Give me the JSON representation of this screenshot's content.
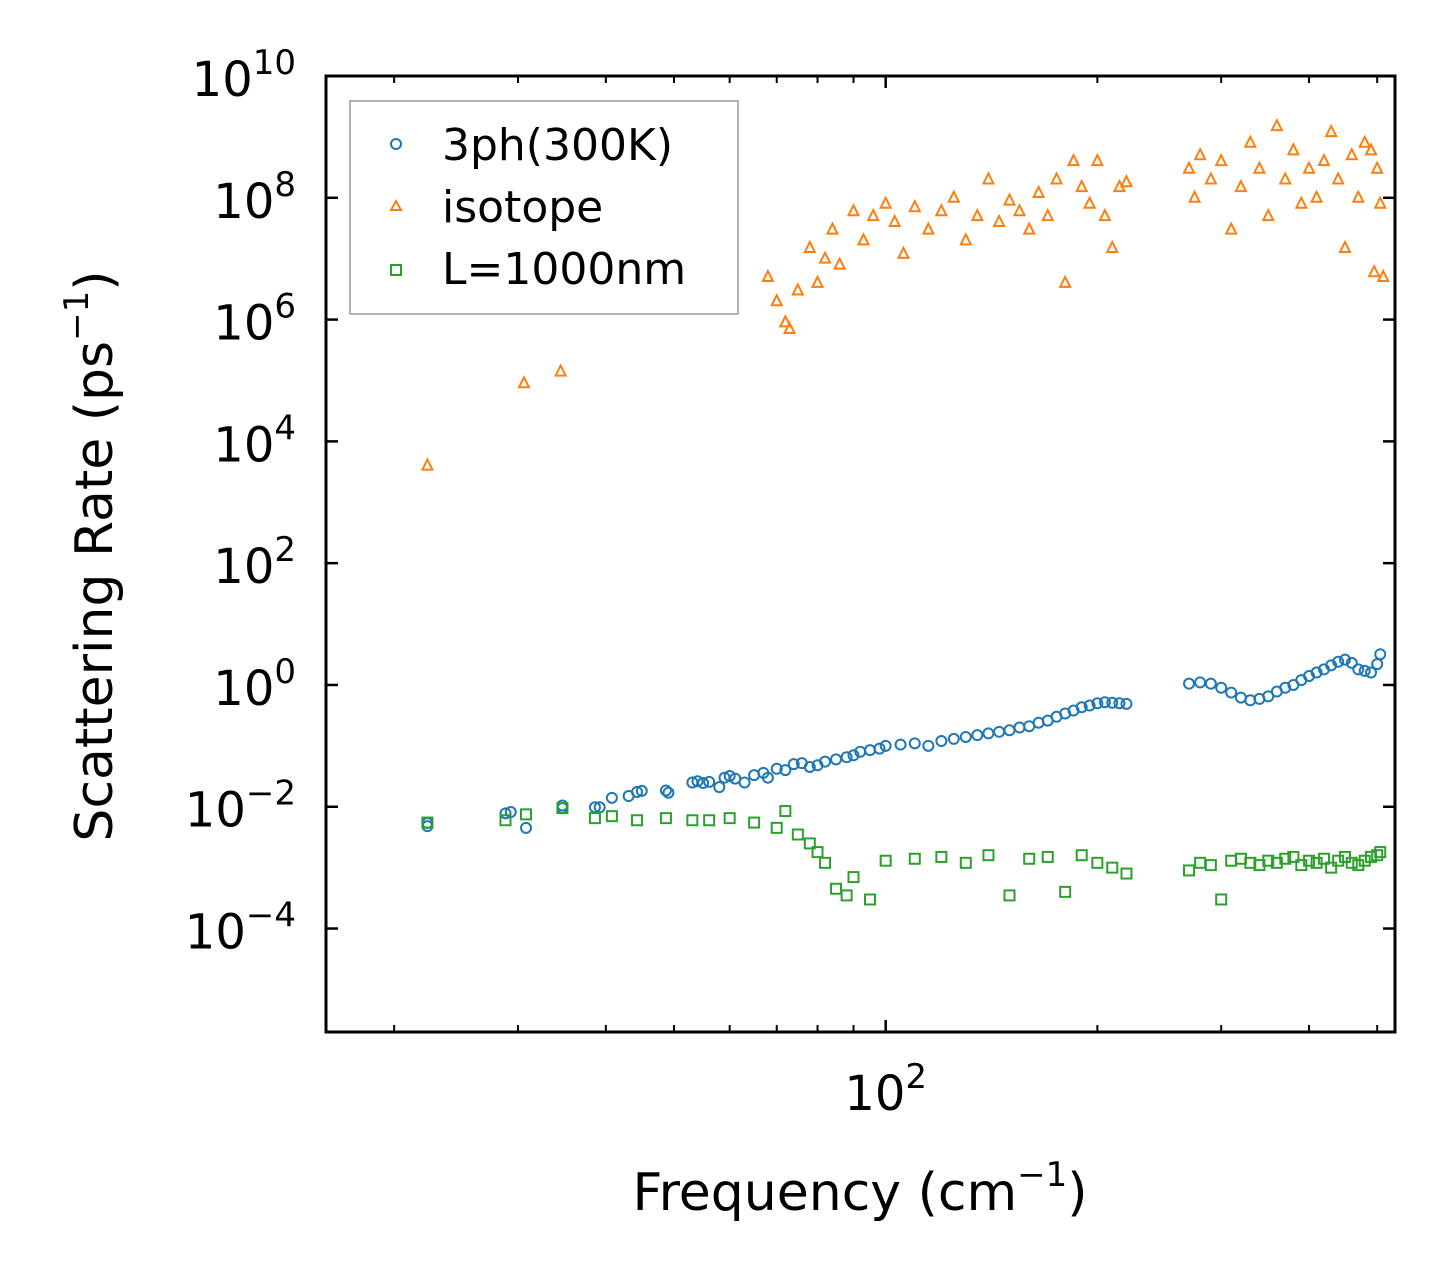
{
  "chart_data": {
    "type": "scatter",
    "title": "",
    "xlabel": "Frequency (cm",
    "xlabel_sup": "−1",
    "xlabel_tail": ")",
    "ylabel": "Scattering Rate (ps",
    "ylabel_sup": "−1",
    "ylabel_tail": ")",
    "xscale": "log",
    "yscale": "log",
    "xlim": [
      16,
      530
    ],
    "ylim": [
      2e-06,
      10000000000.0
    ],
    "x_major_ticks": [
      {
        "value": 100,
        "base": "10",
        "exp": "2"
      }
    ],
    "x_minor_ticks": [
      20,
      30,
      40,
      50,
      60,
      70,
      80,
      90,
      200,
      300,
      400,
      500
    ],
    "y_major_ticks": [
      {
        "value": 0.0001,
        "base": "10",
        "exp": "−4"
      },
      {
        "value": 0.01,
        "base": "10",
        "exp": "−2"
      },
      {
        "value": 1,
        "base": "10",
        "exp": "0"
      },
      {
        "value": 100.0,
        "base": "10",
        "exp": "2"
      },
      {
        "value": 10000.0,
        "base": "10",
        "exp": "4"
      },
      {
        "value": 1000000.0,
        "base": "10",
        "exp": "6"
      },
      {
        "value": 100000000.0,
        "base": "10",
        "exp": "8"
      },
      {
        "value": 10000000000.0,
        "base": "10",
        "exp": "10"
      }
    ],
    "legend_position": "top-left",
    "series": [
      {
        "name": "3ph(300K)",
        "marker": "circle",
        "color": "#1f77b4",
        "points": [
          [
            22.3,
            0.0048
          ],
          [
            22.3,
            0.0054
          ],
          [
            28.8,
            0.0078
          ],
          [
            29.3,
            0.0082
          ],
          [
            30.8,
            0.0045
          ],
          [
            34.7,
            0.0105
          ],
          [
            34.7,
            0.0095
          ],
          [
            38.6,
            0.0098
          ],
          [
            39.2,
            0.0098
          ],
          [
            40.8,
            0.014
          ],
          [
            43.1,
            0.015
          ],
          [
            44.3,
            0.0175
          ],
          [
            45.0,
            0.0182
          ],
          [
            48.7,
            0.0185
          ],
          [
            49.1,
            0.017
          ],
          [
            53.1,
            0.025
          ],
          [
            54.0,
            0.0262
          ],
          [
            55.0,
            0.0245
          ],
          [
            56.1,
            0.0256
          ],
          [
            58.0,
            0.021
          ],
          [
            59.0,
            0.03
          ],
          [
            60.0,
            0.032
          ],
          [
            61.1,
            0.029
          ],
          [
            63.0,
            0.025
          ],
          [
            65.0,
            0.033
          ],
          [
            67.0,
            0.036
          ],
          [
            68.0,
            0.03
          ],
          [
            70.0,
            0.042
          ],
          [
            72.0,
            0.04
          ],
          [
            74.0,
            0.05
          ],
          [
            76.0,
            0.052
          ],
          [
            78.0,
            0.045
          ],
          [
            80.0,
            0.048
          ],
          [
            82.0,
            0.055
          ],
          [
            85.0,
            0.06
          ],
          [
            88.0,
            0.065
          ],
          [
            90.0,
            0.07
          ],
          [
            92.0,
            0.08
          ],
          [
            95.0,
            0.085
          ],
          [
            98.0,
            0.09
          ],
          [
            100.0,
            0.1
          ],
          [
            105.0,
            0.105
          ],
          [
            110.0,
            0.11
          ],
          [
            115.0,
            0.1
          ],
          [
            120.0,
            0.12
          ],
          [
            125.0,
            0.13
          ],
          [
            130.0,
            0.14
          ],
          [
            135.0,
            0.15
          ],
          [
            140.0,
            0.16
          ],
          [
            145.0,
            0.17
          ],
          [
            150.0,
            0.18
          ],
          [
            155.0,
            0.2
          ],
          [
            160.0,
            0.21
          ],
          [
            165.0,
            0.24
          ],
          [
            170.0,
            0.26
          ],
          [
            175.0,
            0.3
          ],
          [
            180.0,
            0.34
          ],
          [
            185.0,
            0.38
          ],
          [
            190.0,
            0.43
          ],
          [
            195.0,
            0.46
          ],
          [
            200.0,
            0.5
          ],
          [
            205.0,
            0.52
          ],
          [
            210.0,
            0.51
          ],
          [
            215.0,
            0.5
          ],
          [
            220.0,
            0.49
          ],
          [
            270.0,
            1.05
          ],
          [
            280.0,
            1.1
          ],
          [
            290.0,
            1.05
          ],
          [
            300.0,
            0.9
          ],
          [
            310.0,
            0.75
          ],
          [
            320.0,
            0.62
          ],
          [
            330.0,
            0.56
          ],
          [
            340.0,
            0.59
          ],
          [
            350.0,
            0.65
          ],
          [
            360.0,
            0.78
          ],
          [
            370.0,
            0.9
          ],
          [
            380.0,
            1.0
          ],
          [
            390.0,
            1.2
          ],
          [
            400.0,
            1.4
          ],
          [
            410.0,
            1.6
          ],
          [
            420.0,
            1.8
          ],
          [
            430.0,
            2.1
          ],
          [
            440.0,
            2.4
          ],
          [
            450.0,
            2.6
          ],
          [
            460.0,
            2.3
          ],
          [
            470.0,
            1.8
          ],
          [
            480.0,
            1.7
          ],
          [
            490.0,
            1.6
          ],
          [
            500.0,
            2.2
          ],
          [
            505.0,
            3.2
          ]
        ]
      },
      {
        "name": "isotope",
        "marker": "triangle",
        "color": "#ff7f0e",
        "points": [
          [
            22.3,
            4000
          ],
          [
            30.6,
            90000
          ],
          [
            34.5,
            140000
          ],
          [
            68.0,
            5000000
          ],
          [
            70.0,
            2000000
          ],
          [
            72.0,
            900000
          ],
          [
            73.0,
            700000
          ],
          [
            75.0,
            3000000
          ],
          [
            78.0,
            15000000
          ],
          [
            80.0,
            4000000
          ],
          [
            82.0,
            10000000
          ],
          [
            84.0,
            30000000
          ],
          [
            86.0,
            8000000
          ],
          [
            90.0,
            60000000
          ],
          [
            93.0,
            20000000
          ],
          [
            96.0,
            50000000
          ],
          [
            100.0,
            80000000
          ],
          [
            103.0,
            40000000
          ],
          [
            106.0,
            12000000
          ],
          [
            110.0,
            70000000
          ],
          [
            115.0,
            30000000
          ],
          [
            120.0,
            60000000
          ],
          [
            125.0,
            100000000
          ],
          [
            130.0,
            20000000
          ],
          [
            135.0,
            50000000
          ],
          [
            140.0,
            200000000
          ],
          [
            145.0,
            40000000
          ],
          [
            150.0,
            90000000
          ],
          [
            155.0,
            60000000
          ],
          [
            160.0,
            30000000
          ],
          [
            165.0,
            120000000
          ],
          [
            170.0,
            50000000
          ],
          [
            175.0,
            200000000
          ],
          [
            180.0,
            4000000
          ],
          [
            185.0,
            400000000
          ],
          [
            190.0,
            150000000
          ],
          [
            195.0,
            80000000
          ],
          [
            200.0,
            400000000
          ],
          [
            205.0,
            50000000
          ],
          [
            210.0,
            15000000
          ],
          [
            215.0,
            150000000
          ],
          [
            220.0,
            180000000
          ],
          [
            270.0,
            300000000
          ],
          [
            275.0,
            100000000
          ],
          [
            280.0,
            500000000
          ],
          [
            290.0,
            200000000
          ],
          [
            300.0,
            400000000
          ],
          [
            310.0,
            30000000
          ],
          [
            320.0,
            150000000
          ],
          [
            330.0,
            800000000
          ],
          [
            340.0,
            300000000
          ],
          [
            350.0,
            50000000
          ],
          [
            360.0,
            1500000000
          ],
          [
            370.0,
            200000000
          ],
          [
            380.0,
            600000000
          ],
          [
            390.0,
            80000000
          ],
          [
            400.0,
            300000000
          ],
          [
            410.0,
            100000000
          ],
          [
            420.0,
            400000000
          ],
          [
            430.0,
            1200000000
          ],
          [
            440.0,
            200000000
          ],
          [
            450.0,
            15000000
          ],
          [
            460.0,
            500000000
          ],
          [
            470.0,
            100000000
          ],
          [
            480.0,
            800000000
          ],
          [
            490.0,
            600000000
          ],
          [
            495.0,
            6000000
          ],
          [
            500.0,
            300000000
          ],
          [
            505.0,
            80000000
          ],
          [
            510.0,
            5000000
          ]
        ]
      },
      {
        "name": "L=1000nm",
        "marker": "square",
        "color": "#2ca02c",
        "points": [
          [
            22.3,
            0.0055
          ],
          [
            28.8,
            0.006
          ],
          [
            30.8,
            0.0075
          ],
          [
            34.7,
            0.0095
          ],
          [
            38.6,
            0.0065
          ],
          [
            40.8,
            0.007
          ],
          [
            44.3,
            0.006
          ],
          [
            48.7,
            0.0065
          ],
          [
            53.1,
            0.006
          ],
          [
            56.1,
            0.006
          ],
          [
            60.0,
            0.0065
          ],
          [
            65.0,
            0.0055
          ],
          [
            70.0,
            0.0045
          ],
          [
            72.0,
            0.0085
          ],
          [
            75.0,
            0.0035
          ],
          [
            78.0,
            0.0025
          ],
          [
            80.0,
            0.0018
          ],
          [
            82.0,
            0.0012
          ],
          [
            85.0,
            0.00045
          ],
          [
            88.0,
            0.00035
          ],
          [
            90.0,
            0.0007
          ],
          [
            95.0,
            0.0003
          ],
          [
            100.0,
            0.0013
          ],
          [
            110.0,
            0.0014
          ],
          [
            120.0,
            0.0015
          ],
          [
            130.0,
            0.0012
          ],
          [
            140.0,
            0.0016
          ],
          [
            150.0,
            0.00035
          ],
          [
            160.0,
            0.0014
          ],
          [
            170.0,
            0.0015
          ],
          [
            180.0,
            0.0004
          ],
          [
            190.0,
            0.0016
          ],
          [
            200.0,
            0.0012
          ],
          [
            210.0,
            0.001
          ],
          [
            220.0,
            0.0008
          ],
          [
            270.0,
            0.0009
          ],
          [
            280.0,
            0.0012
          ],
          [
            290.0,
            0.0011
          ],
          [
            300.0,
            0.0003
          ],
          [
            310.0,
            0.0013
          ],
          [
            320.0,
            0.0014
          ],
          [
            330.0,
            0.0012
          ],
          [
            340.0,
            0.0011
          ],
          [
            350.0,
            0.0013
          ],
          [
            360.0,
            0.0012
          ],
          [
            370.0,
            0.0014
          ],
          [
            380.0,
            0.0015
          ],
          [
            390.0,
            0.0011
          ],
          [
            400.0,
            0.0013
          ],
          [
            410.0,
            0.0012
          ],
          [
            420.0,
            0.0014
          ],
          [
            430.0,
            0.001
          ],
          [
            440.0,
            0.0013
          ],
          [
            450.0,
            0.0015
          ],
          [
            460.0,
            0.0012
          ],
          [
            470.0,
            0.0011
          ],
          [
            480.0,
            0.0013
          ],
          [
            490.0,
            0.0015
          ],
          [
            500.0,
            0.0016
          ],
          [
            505.0,
            0.0018
          ]
        ]
      }
    ]
  }
}
